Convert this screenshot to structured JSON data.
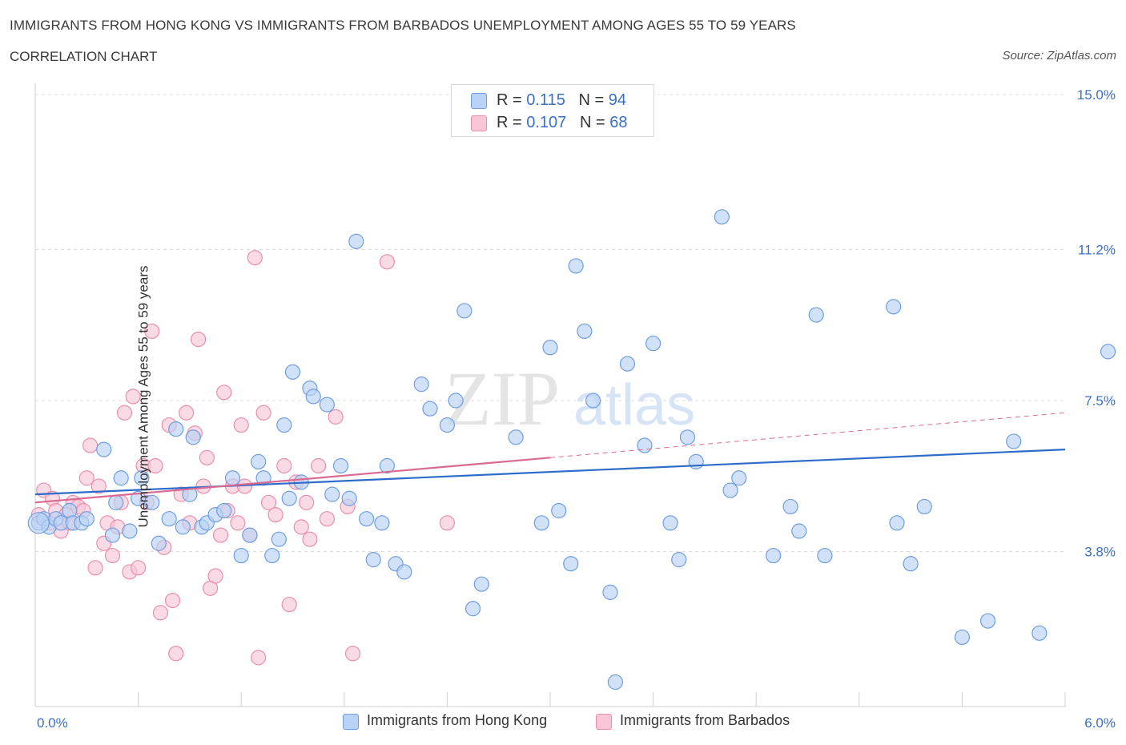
{
  "header": {
    "title": "IMMIGRANTS FROM HONG KONG VS IMMIGRANTS FROM BARBADOS UNEMPLOYMENT AMONG AGES 55 TO 59 YEARS",
    "subtitle": "CORRELATION CHART",
    "source": "Source: ZipAtlas.com"
  },
  "watermark": {
    "zip": "ZIP",
    "atlas": "atlas"
  },
  "legend_top": {
    "rows": [
      {
        "r_label": "R = ",
        "r_value": "0.115",
        "n_label": "N = ",
        "n_value": "94"
      },
      {
        "r_label": "R = ",
        "r_value": "0.107",
        "n_label": "N = ",
        "n_value": "68"
      }
    ]
  },
  "legend_bottom": {
    "items": [
      {
        "label": "Immigrants from Hong Kong"
      },
      {
        "label": "Immigrants from Barbados"
      }
    ]
  },
  "colors": {
    "hong_kong_fill": "#b9d2f5",
    "hong_kong_stroke": "#6f9ee0",
    "hong_kong_line": "#2d6cc8",
    "barbados_fill": "#f8c6d6",
    "barbados_stroke": "#e98fae",
    "barbados_line": "#d96b93",
    "axis_label": "#3a6fc4",
    "grid": "#dcdcdc"
  },
  "chart_data": {
    "type": "scatter",
    "title": "IMMIGRANTS FROM HONG KONG VS IMMIGRANTS FROM BARBADOS UNEMPLOYMENT AMONG AGES 55 TO 59 YEARS",
    "subtitle": "CORRELATION CHART",
    "xlabel": "",
    "ylabel": "Unemployment Among Ages 55 to 59 years",
    "xlim": [
      0,
      6
    ],
    "ylim": [
      0,
      15
    ],
    "x_tick_labels": [
      "0.0%",
      "6.0%"
    ],
    "y_ticks": [
      3.8,
      7.5,
      11.2,
      15.0
    ],
    "y_tick_labels": [
      "3.8%",
      "7.5%",
      "11.2%",
      "15.0%"
    ],
    "grid": "horizontal dashed",
    "legend_placement": "top-center",
    "series": [
      {
        "name": "Immigrants from Hong Kong",
        "R": 0.115,
        "N": 94,
        "trend": {
          "x": [
            0,
            6
          ],
          "y": [
            5.2,
            6.3
          ],
          "style": "solid"
        },
        "points": [
          [
            0.02,
            4.5
          ],
          [
            0.05,
            4.6
          ],
          [
            0.08,
            4.4
          ],
          [
            0.12,
            4.6
          ],
          [
            0.15,
            4.5
          ],
          [
            0.2,
            4.8
          ],
          [
            0.22,
            4.5
          ],
          [
            0.27,
            4.5
          ],
          [
            0.3,
            4.6
          ],
          [
            0.4,
            6.3
          ],
          [
            0.45,
            4.2
          ],
          [
            0.47,
            5.0
          ],
          [
            0.5,
            5.6
          ],
          [
            0.55,
            4.3
          ],
          [
            0.6,
            5.1
          ],
          [
            0.62,
            5.6
          ],
          [
            0.68,
            5.0
          ],
          [
            0.72,
            4.0
          ],
          [
            0.78,
            4.6
          ],
          [
            0.82,
            6.8
          ],
          [
            0.86,
            4.4
          ],
          [
            0.9,
            5.2
          ],
          [
            0.92,
            6.6
          ],
          [
            0.97,
            4.4
          ],
          [
            1.0,
            4.5
          ],
          [
            1.05,
            4.7
          ],
          [
            1.1,
            4.8
          ],
          [
            1.15,
            5.6
          ],
          [
            1.2,
            3.7
          ],
          [
            1.25,
            4.2
          ],
          [
            1.3,
            6.0
          ],
          [
            1.33,
            5.6
          ],
          [
            1.38,
            3.7
          ],
          [
            1.42,
            4.1
          ],
          [
            1.45,
            6.9
          ],
          [
            1.48,
            5.1
          ],
          [
            1.5,
            8.2
          ],
          [
            1.55,
            5.5
          ],
          [
            1.6,
            7.8
          ],
          [
            1.62,
            7.6
          ],
          [
            1.7,
            7.4
          ],
          [
            1.73,
            5.2
          ],
          [
            1.78,
            5.9
          ],
          [
            1.83,
            5.1
          ],
          [
            1.87,
            11.4
          ],
          [
            1.93,
            4.6
          ],
          [
            1.97,
            3.6
          ],
          [
            2.02,
            4.5
          ],
          [
            2.05,
            5.9
          ],
          [
            2.1,
            3.5
          ],
          [
            2.15,
            3.3
          ],
          [
            2.25,
            7.9
          ],
          [
            2.3,
            7.3
          ],
          [
            2.4,
            6.9
          ],
          [
            2.45,
            7.5
          ],
          [
            2.5,
            9.7
          ],
          [
            2.55,
            2.4
          ],
          [
            2.6,
            3.0
          ],
          [
            2.8,
            6.6
          ],
          [
            2.95,
            4.5
          ],
          [
            3.0,
            8.8
          ],
          [
            3.05,
            4.8
          ],
          [
            3.12,
            3.5
          ],
          [
            3.15,
            10.8
          ],
          [
            3.2,
            9.2
          ],
          [
            3.25,
            7.5
          ],
          [
            3.35,
            2.8
          ],
          [
            3.38,
            0.6
          ],
          [
            3.45,
            8.4
          ],
          [
            3.55,
            6.4
          ],
          [
            3.6,
            8.9
          ],
          [
            3.7,
            4.5
          ],
          [
            3.75,
            3.6
          ],
          [
            3.8,
            6.6
          ],
          [
            3.85,
            6.0
          ],
          [
            4.0,
            12.0
          ],
          [
            4.05,
            5.3
          ],
          [
            4.1,
            5.6
          ],
          [
            4.3,
            3.7
          ],
          [
            4.4,
            4.9
          ],
          [
            4.45,
            4.3
          ],
          [
            4.55,
            9.6
          ],
          [
            4.6,
            3.7
          ],
          [
            5.0,
            9.8
          ],
          [
            5.02,
            4.5
          ],
          [
            5.1,
            3.5
          ],
          [
            5.18,
            4.9
          ],
          [
            5.4,
            1.7
          ],
          [
            5.55,
            2.1
          ],
          [
            5.7,
            6.5
          ],
          [
            5.85,
            1.8
          ],
          [
            6.25,
            8.7
          ]
        ]
      },
      {
        "name": "Immigrants from Barbados",
        "R": 0.107,
        "N": 68,
        "trend": {
          "x": [
            0,
            6
          ],
          "y": [
            5.0,
            7.2
          ],
          "style": "solid to 3.0, dashed beyond"
        },
        "points": [
          [
            0.02,
            4.7
          ],
          [
            0.05,
            5.3
          ],
          [
            0.08,
            4.5
          ],
          [
            0.1,
            5.1
          ],
          [
            0.12,
            4.8
          ],
          [
            0.15,
            4.3
          ],
          [
            0.18,
            4.7
          ],
          [
            0.2,
            4.5
          ],
          [
            0.22,
            5.0
          ],
          [
            0.25,
            4.9
          ],
          [
            0.28,
            4.8
          ],
          [
            0.3,
            5.6
          ],
          [
            0.32,
            6.4
          ],
          [
            0.35,
            3.4
          ],
          [
            0.37,
            5.4
          ],
          [
            0.4,
            4.0
          ],
          [
            0.42,
            4.5
          ],
          [
            0.45,
            3.7
          ],
          [
            0.48,
            4.4
          ],
          [
            0.5,
            5.0
          ],
          [
            0.52,
            7.2
          ],
          [
            0.55,
            3.3
          ],
          [
            0.57,
            7.6
          ],
          [
            0.6,
            3.4
          ],
          [
            0.63,
            5.9
          ],
          [
            0.65,
            5.0
          ],
          [
            0.68,
            9.2
          ],
          [
            0.7,
            5.9
          ],
          [
            0.73,
            2.3
          ],
          [
            0.75,
            3.9
          ],
          [
            0.78,
            6.9
          ],
          [
            0.8,
            2.6
          ],
          [
            0.82,
            1.3
          ],
          [
            0.85,
            5.2
          ],
          [
            0.88,
            7.2
          ],
          [
            0.9,
            4.5
          ],
          [
            0.93,
            6.7
          ],
          [
            0.95,
            9.0
          ],
          [
            0.98,
            5.4
          ],
          [
            1.0,
            6.1
          ],
          [
            1.02,
            2.9
          ],
          [
            1.05,
            3.2
          ],
          [
            1.08,
            4.2
          ],
          [
            1.1,
            7.7
          ],
          [
            1.12,
            4.8
          ],
          [
            1.15,
            5.4
          ],
          [
            1.18,
            4.5
          ],
          [
            1.2,
            6.9
          ],
          [
            1.22,
            5.4
          ],
          [
            1.25,
            4.2
          ],
          [
            1.28,
            11.0
          ],
          [
            1.3,
            1.2
          ],
          [
            1.33,
            7.2
          ],
          [
            1.36,
            5.0
          ],
          [
            1.4,
            4.7
          ],
          [
            1.45,
            5.9
          ],
          [
            1.48,
            2.5
          ],
          [
            1.52,
            5.5
          ],
          [
            1.55,
            4.4
          ],
          [
            1.58,
            5.0
          ],
          [
            1.6,
            4.1
          ],
          [
            1.65,
            5.9
          ],
          [
            1.7,
            4.6
          ],
          [
            1.75,
            7.1
          ],
          [
            1.82,
            4.9
          ],
          [
            1.85,
            1.3
          ],
          [
            2.05,
            10.9
          ],
          [
            2.4,
            4.5
          ]
        ]
      }
    ]
  }
}
